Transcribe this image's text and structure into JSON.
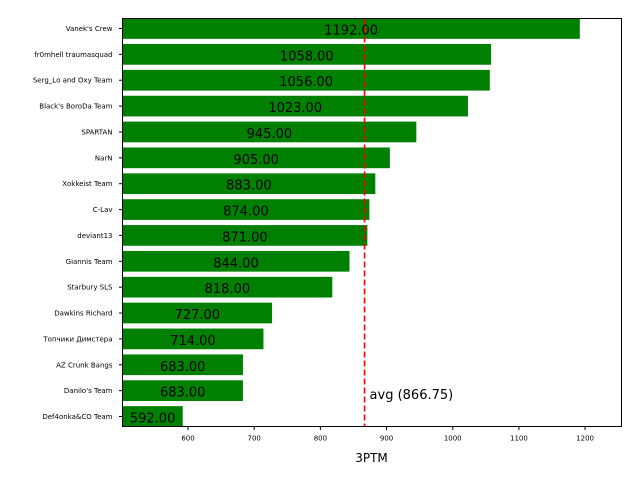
{
  "chart_data": {
    "type": "bar",
    "orientation": "horizontal",
    "xlabel": "3PTM",
    "ylabel": "",
    "xlim": [
      501,
      1255
    ],
    "xticks": [
      600,
      700,
      800,
      900,
      1000,
      1100,
      1200
    ],
    "bar_color": "#008000",
    "categories": [
      "Vanek's Crew",
      "fr0mhell traumasquad",
      "Serg_Lo and Oxy Team",
      "Black's BoroDa Team",
      "SPARTAN",
      "NarN",
      "Xokkeist Team",
      "C-Lav",
      "deviant13",
      "Giannis Team",
      "Starbury SLS",
      "Dawkins Richard",
      "Топчики Димстера",
      "AZ Crunk Bangs",
      "Danilo's Team",
      "Def4onka&CO Team"
    ],
    "values": [
      1192,
      1058,
      1056,
      1023,
      945,
      905,
      883,
      874,
      871,
      844,
      818,
      727,
      714,
      683,
      683,
      592
    ],
    "value_labels": [
      "1192.00",
      "1058.00",
      "1056.00",
      "1023.00",
      "945.00",
      "905.00",
      "883.00",
      "874.00",
      "871.00",
      "844.00",
      "818.00",
      "727.00",
      "714.00",
      "683.00",
      "683.00",
      "592.00"
    ],
    "average": {
      "value": 866.75,
      "label": "avg (866.75)",
      "color": "#ff0000",
      "style": "dashed"
    },
    "grid": false,
    "legend": "none"
  }
}
